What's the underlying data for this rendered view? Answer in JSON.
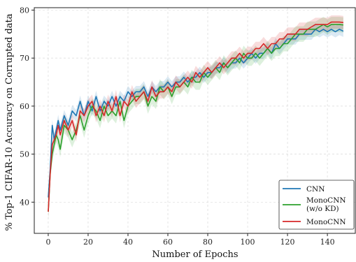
{
  "chart_data": {
    "type": "line",
    "title": "",
    "xlabel": "Number of Epochs",
    "ylabel": "% Top-1 CIFAR-10 Accuracy on Corrupted data",
    "xlim": [
      -7,
      154
    ],
    "ylim": [
      33.5,
      80.5
    ],
    "xticks": [
      0,
      20,
      40,
      60,
      80,
      100,
      120,
      140
    ],
    "yticks": [
      40,
      50,
      60,
      70,
      80
    ],
    "grid": true,
    "legend": {
      "position": "bottom-right",
      "entries": [
        {
          "label": "CNN",
          "lines": [
            "CNN"
          ],
          "color": "#1f77b4"
        },
        {
          "label": "MonoCNN (w/o KD)",
          "lines": [
            "MonoCNN",
            "(w/o KD)"
          ],
          "color": "#2ca02c"
        },
        {
          "label": "MonoCNN",
          "lines": [
            "MonoCNN"
          ],
          "color": "#d62728"
        }
      ]
    },
    "series": [
      {
        "name": "CNN",
        "color": "#1f77b4",
        "band": 1.2,
        "x": [
          0,
          1,
          2,
          3,
          4,
          5,
          6,
          8,
          10,
          12,
          14,
          16,
          18,
          20,
          22,
          24,
          26,
          28,
          30,
          32,
          34,
          36,
          38,
          40,
          42,
          44,
          46,
          48,
          50,
          52,
          54,
          56,
          58,
          60,
          62,
          64,
          66,
          68,
          70,
          72,
          74,
          76,
          78,
          80,
          82,
          84,
          86,
          88,
          90,
          92,
          94,
          96,
          98,
          100,
          102,
          104,
          106,
          108,
          110,
          112,
          114,
          116,
          118,
          120,
          122,
          124,
          126,
          128,
          130,
          132,
          134,
          136,
          138,
          140,
          142,
          144,
          146,
          148
        ],
        "values": [
          41,
          47,
          56,
          53,
          55,
          57,
          55,
          58,
          56,
          59,
          58,
          61,
          58,
          61,
          59,
          62,
          59,
          61,
          60,
          62,
          60,
          62,
          61,
          63,
          62,
          63,
          63,
          64,
          62,
          64,
          63,
          64,
          64,
          65,
          64,
          65,
          65,
          66,
          65,
          66,
          66,
          67,
          66,
          67,
          67,
          68,
          68,
          69,
          68,
          69,
          69,
          70,
          69,
          70,
          71,
          70,
          71,
          71,
          72,
          71,
          73,
          72,
          73,
          74,
          74,
          74,
          75,
          75,
          75,
          75,
          76,
          75.5,
          76,
          75.5,
          76,
          75.5,
          76,
          75.6
        ]
      },
      {
        "name": "MonoCNN (w/o KD)",
        "color": "#2ca02c",
        "band": 1.6,
        "x": [
          0,
          1,
          2,
          3,
          4,
          5,
          6,
          8,
          10,
          12,
          14,
          16,
          18,
          20,
          22,
          24,
          26,
          28,
          30,
          32,
          34,
          36,
          38,
          40,
          42,
          44,
          46,
          48,
          50,
          52,
          54,
          56,
          58,
          60,
          62,
          64,
          66,
          68,
          70,
          72,
          74,
          76,
          78,
          80,
          82,
          84,
          86,
          88,
          90,
          92,
          94,
          96,
          98,
          100,
          102,
          104,
          106,
          108,
          110,
          112,
          114,
          116,
          118,
          120,
          122,
          124,
          126,
          128,
          130,
          132,
          134,
          136,
          138,
          140,
          142,
          144,
          146,
          148
        ],
        "values": [
          38,
          46,
          50,
          52,
          54,
          53,
          51,
          56,
          55,
          53,
          55,
          58,
          55,
          58,
          60,
          59,
          57,
          60,
          58,
          59,
          58,
          61,
          57,
          60,
          61,
          62,
          62,
          63,
          60,
          62,
          61,
          64,
          63,
          64,
          62,
          64,
          64,
          65,
          64,
          66,
          65,
          65,
          67,
          66,
          67,
          68,
          67,
          69,
          68,
          69,
          70,
          69,
          71,
          70,
          70,
          71,
          70,
          71,
          72,
          71,
          72,
          72,
          73,
          73,
          74,
          75,
          75,
          75,
          76,
          76,
          76,
          76.5,
          77,
          76.5,
          77,
          77,
          77,
          76.9
        ]
      },
      {
        "name": "MonoCNN",
        "color": "#d62728",
        "band": 1.4,
        "x": [
          0,
          1,
          2,
          3,
          4,
          5,
          6,
          8,
          10,
          12,
          14,
          16,
          18,
          20,
          22,
          24,
          26,
          28,
          30,
          32,
          34,
          36,
          38,
          40,
          42,
          44,
          46,
          48,
          50,
          52,
          54,
          56,
          58,
          60,
          62,
          64,
          66,
          68,
          70,
          72,
          74,
          76,
          78,
          80,
          82,
          84,
          86,
          88,
          90,
          92,
          94,
          96,
          98,
          100,
          102,
          104,
          106,
          108,
          110,
          112,
          114,
          116,
          118,
          120,
          122,
          124,
          126,
          128,
          130,
          132,
          134,
          136,
          138,
          140,
          142,
          144,
          146,
          148
        ],
        "values": [
          38,
          46,
          52,
          53,
          54,
          56,
          54,
          57,
          55,
          57,
          54,
          59,
          58,
          60,
          61,
          58,
          60,
          58,
          61,
          59,
          62,
          58,
          61,
          60,
          63,
          61,
          62,
          63,
          61,
          64,
          62,
          63,
          63,
          64,
          63,
          65,
          64,
          65,
          66,
          65,
          67,
          66,
          67,
          68,
          67,
          68,
          69,
          68,
          69,
          70,
          70,
          71,
          70,
          71,
          71,
          72,
          72,
          73,
          72,
          73,
          73,
          74,
          74,
          75,
          75,
          75,
          76,
          76,
          76,
          76.5,
          77,
          77,
          77,
          77,
          77.5,
          77.5,
          77.5,
          77.4
        ]
      }
    ]
  }
}
